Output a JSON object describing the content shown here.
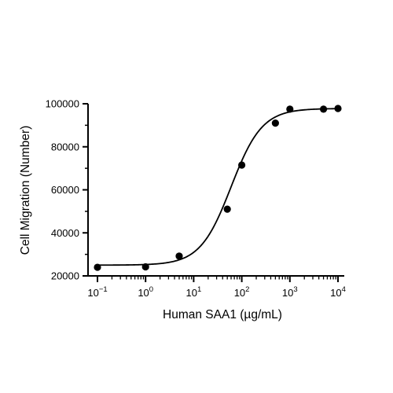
{
  "chart_data": {
    "type": "scatter",
    "title": "",
    "xlabel": "Human SAA1 (µg/mL)",
    "ylabel": "Cell Migration (Number)",
    "x_scale": "log",
    "xlim": [
      0.1,
      10000
    ],
    "ylim": [
      20000,
      100000
    ],
    "x_ticks": [
      {
        "value": 0.1,
        "base": "10",
        "exp": "−1"
      },
      {
        "value": 1,
        "base": "10",
        "exp": "0"
      },
      {
        "value": 10,
        "base": "10",
        "exp": "1"
      },
      {
        "value": 100,
        "base": "10",
        "exp": "2"
      },
      {
        "value": 1000,
        "base": "10",
        "exp": "3"
      },
      {
        "value": 10000,
        "base": "10",
        "exp": "4"
      }
    ],
    "y_ticks": [
      {
        "value": 20000,
        "label": "20000"
      },
      {
        "value": 40000,
        "label": "40000"
      },
      {
        "value": 60000,
        "label": "60000"
      },
      {
        "value": 80000,
        "label": "80000"
      },
      {
        "value": 100000,
        "label": "100000"
      }
    ],
    "grid": false,
    "legend": "none",
    "points": {
      "x": [
        0.1,
        1,
        5,
        50,
        100,
        500,
        1000,
        5000,
        10000
      ],
      "y": [
        24000,
        24200,
        29200,
        51000,
        71500,
        91000,
        97500,
        97500,
        97800
      ]
    },
    "fit_curve": {
      "model": "four-parameter logistic",
      "bottom": 25000,
      "top": 97800,
      "ec50": 60,
      "hill": 1.35
    },
    "colors": {
      "marker": "#000000",
      "line": "#000000",
      "axis": "#000000"
    }
  }
}
